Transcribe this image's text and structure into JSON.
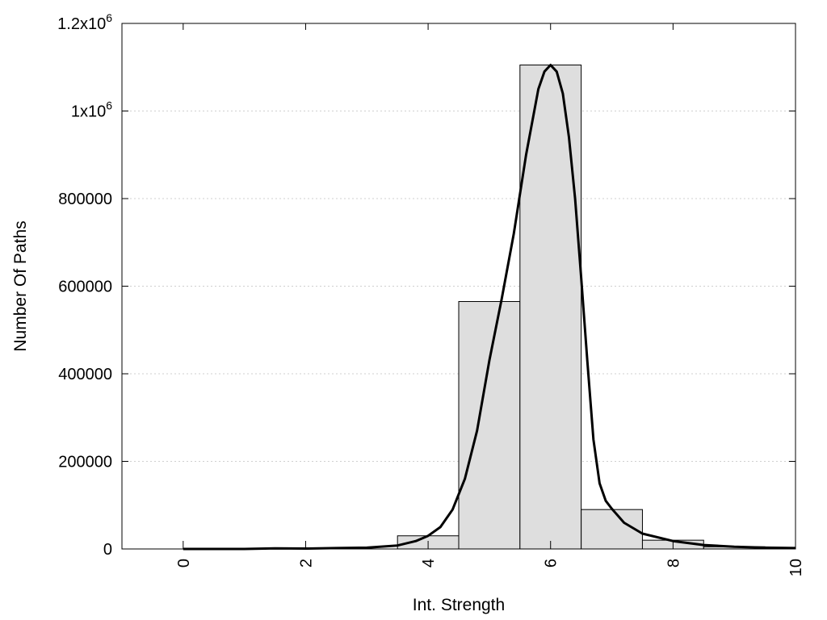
{
  "chart_data": {
    "type": "bar",
    "title": "",
    "xlabel": "Int. Strength",
    "ylabel": "Number Of Paths",
    "xlim": [
      -1,
      10
    ],
    "ylim": [
      0,
      1200000
    ],
    "grid": true,
    "x_ticks": [
      0,
      2,
      4,
      6,
      8,
      10
    ],
    "y_ticks": [
      {
        "value": 0,
        "label": "0"
      },
      {
        "value": 200000,
        "label": "200000"
      },
      {
        "value": 400000,
        "label": "400000"
      },
      {
        "value": 600000,
        "label": "600000"
      },
      {
        "value": 800000,
        "label": "800000"
      },
      {
        "value": 1000000,
        "label": "1x10",
        "exp": "6"
      },
      {
        "value": 1200000,
        "label": "1.2x10",
        "exp": "6"
      }
    ],
    "categories": [
      0,
      1,
      2,
      3,
      4,
      5,
      6,
      7,
      8,
      9
    ],
    "values": [
      0,
      0,
      0,
      0,
      30000,
      565000,
      1105000,
      90000,
      20000,
      5000
    ],
    "fit_curve": {
      "x": [
        0,
        1,
        1.5,
        2,
        2.5,
        3,
        3.5,
        3.8,
        4,
        4.2,
        4.4,
        4.6,
        4.8,
        5,
        5.2,
        5.4,
        5.6,
        5.8,
        5.9,
        6,
        6.1,
        6.2,
        6.3,
        6.4,
        6.5,
        6.6,
        6.7,
        6.8,
        6.9,
        7,
        7.2,
        7.5,
        8,
        8.5,
        9,
        9.5,
        10
      ],
      "y": [
        0,
        0,
        1500,
        1000,
        2000,
        3000,
        8000,
        18000,
        30000,
        50000,
        90000,
        160000,
        270000,
        430000,
        570000,
        720000,
        900000,
        1050000,
        1090000,
        1105000,
        1090000,
        1040000,
        940000,
        800000,
        620000,
        430000,
        250000,
        150000,
        110000,
        92000,
        60000,
        35000,
        18000,
        9000,
        5000,
        3000,
        2000
      ]
    }
  }
}
